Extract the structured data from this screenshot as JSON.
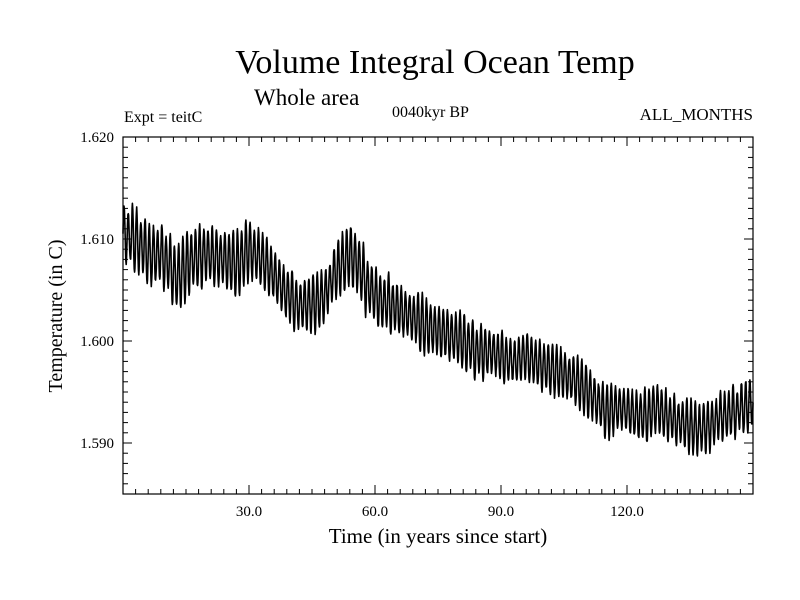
{
  "header": {
    "title": "Volume Integral Ocean Temp",
    "subtitle": "Whole area",
    "experiment": "Expt = teitC",
    "period": "0040kyr BP",
    "months": "ALL_MONTHS"
  },
  "chart_data": {
    "type": "line",
    "title": "Volume Integral Ocean Temp",
    "subtitle": "Whole area",
    "xlabel": "Time (in years since start)",
    "ylabel": "Temperature (in C)",
    "xlim": [
      0,
      150
    ],
    "ylim": [
      1.585,
      1.62
    ],
    "x_ticks": [
      30,
      60,
      90,
      120
    ],
    "x_tick_labels": [
      "30.0",
      "60.0",
      "90.0",
      "120.0"
    ],
    "y_ticks": [
      1.59,
      1.6,
      1.61,
      1.62
    ],
    "y_tick_labels": [
      "1.590",
      "1.600",
      "1.610",
      "1.620"
    ],
    "grid": false,
    "legend": "none",
    "seasonal_cycle_period_years": 1,
    "series": [
      {
        "name": "Volume integral ocean temperature",
        "annual_mean_x": [
          0,
          3,
          6,
          9,
          11,
          13,
          16,
          20,
          24,
          27,
          30,
          33,
          36,
          39,
          42,
          45,
          48,
          51,
          54,
          56,
          58,
          61,
          64,
          68,
          72,
          75,
          78,
          81,
          84,
          87,
          90,
          93,
          96,
          100,
          104,
          108,
          112,
          115,
          118,
          121,
          124,
          127,
          130,
          133,
          136,
          139,
          142,
          145,
          148,
          150
        ],
        "annual_mean_y": [
          1.6105,
          1.61,
          1.6085,
          1.6085,
          1.6075,
          1.606,
          1.608,
          1.6085,
          1.608,
          1.6075,
          1.609,
          1.608,
          1.6065,
          1.6045,
          1.6035,
          1.6035,
          1.6045,
          1.607,
          1.6085,
          1.6075,
          1.6055,
          1.604,
          1.6035,
          1.6025,
          1.6015,
          1.601,
          1.6005,
          1.6,
          1.599,
          1.599,
          1.5985,
          1.598,
          1.5985,
          1.5975,
          1.597,
          1.596,
          1.5945,
          1.593,
          1.5935,
          1.593,
          1.5925,
          1.5935,
          1.5925,
          1.592,
          1.5915,
          1.5915,
          1.5925,
          1.593,
          1.5935,
          1.594
        ],
        "seasonal_amplitude_x": [
          0,
          30,
          50,
          55,
          60,
          100,
          150
        ],
        "seasonal_amplitude_y": [
          0.0028,
          0.0028,
          0.0024,
          0.003,
          0.0026,
          0.0024,
          0.0022
        ]
      }
    ]
  }
}
